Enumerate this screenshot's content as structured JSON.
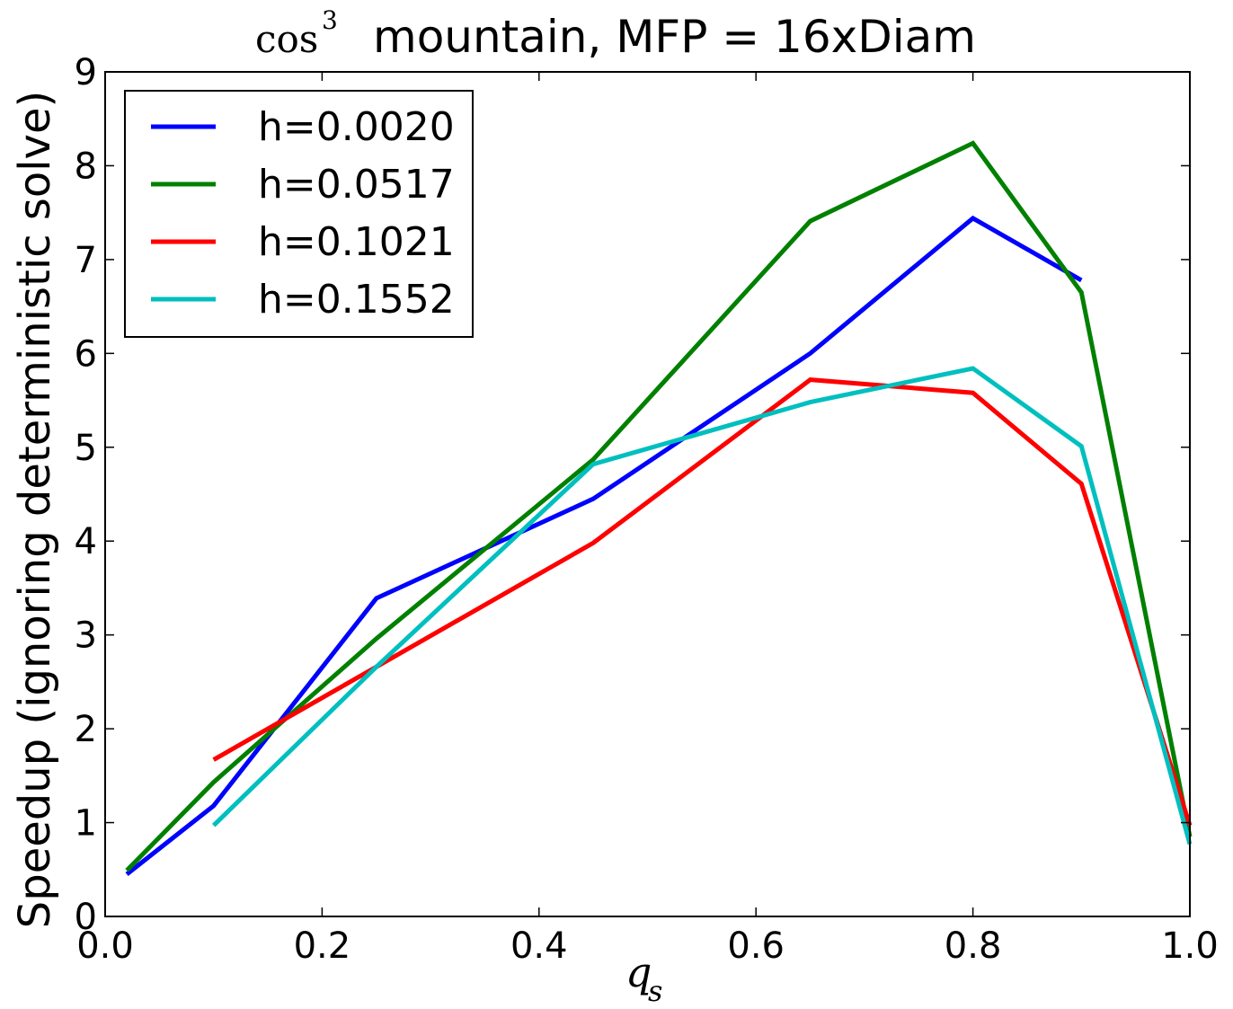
{
  "chart_data": {
    "type": "line",
    "title": {
      "math": "cos",
      "math_sup": "3",
      "text": "mountain, MFP = 16xDiam"
    },
    "xlabel": {
      "math": "q",
      "sub": "s"
    },
    "ylabel": "Speedup (ignoring deterministic solve)",
    "xlim": [
      0.0,
      1.0
    ],
    "ylim": [
      0,
      9
    ],
    "xticks": [
      0.0,
      0.2,
      0.4,
      0.6,
      0.8,
      1.0
    ],
    "xtick_labels": [
      "0.0",
      "0.2",
      "0.4",
      "0.6",
      "0.8",
      "1.0"
    ],
    "yticks": [
      0,
      1,
      2,
      3,
      4,
      5,
      6,
      7,
      8,
      9
    ],
    "ytick_labels": [
      "0",
      "1",
      "2",
      "3",
      "4",
      "5",
      "6",
      "7",
      "8",
      "9"
    ],
    "grid": false,
    "legend_position": "upper-left",
    "series": [
      {
        "name": "h=0.0020",
        "color": "#0000ff",
        "x": [
          0.02,
          0.1,
          0.25,
          0.45,
          0.65,
          0.8,
          0.9
        ],
        "y": [
          0.45,
          1.18,
          3.39,
          4.45,
          6.0,
          7.44,
          6.78
        ]
      },
      {
        "name": "h=0.0517",
        "color": "#008000",
        "x": [
          0.02,
          0.1,
          0.25,
          0.45,
          0.65,
          0.8,
          0.9,
          1.0
        ],
        "y": [
          0.49,
          1.43,
          2.96,
          4.87,
          7.41,
          8.24,
          6.65,
          0.85
        ]
      },
      {
        "name": "h=0.1021",
        "color": "#ff0000",
        "x": [
          0.1,
          0.25,
          0.45,
          0.65,
          0.8,
          0.9,
          1.0
        ],
        "y": [
          1.67,
          2.66,
          3.98,
          5.72,
          5.58,
          4.61,
          0.97
        ]
      },
      {
        "name": "h=0.1552",
        "color": "#00bfbf",
        "x": [
          0.1,
          0.25,
          0.45,
          0.65,
          0.8,
          0.9,
          1.0
        ],
        "y": [
          0.97,
          2.66,
          4.82,
          5.48,
          5.84,
          5.01,
          0.77
        ]
      }
    ]
  }
}
